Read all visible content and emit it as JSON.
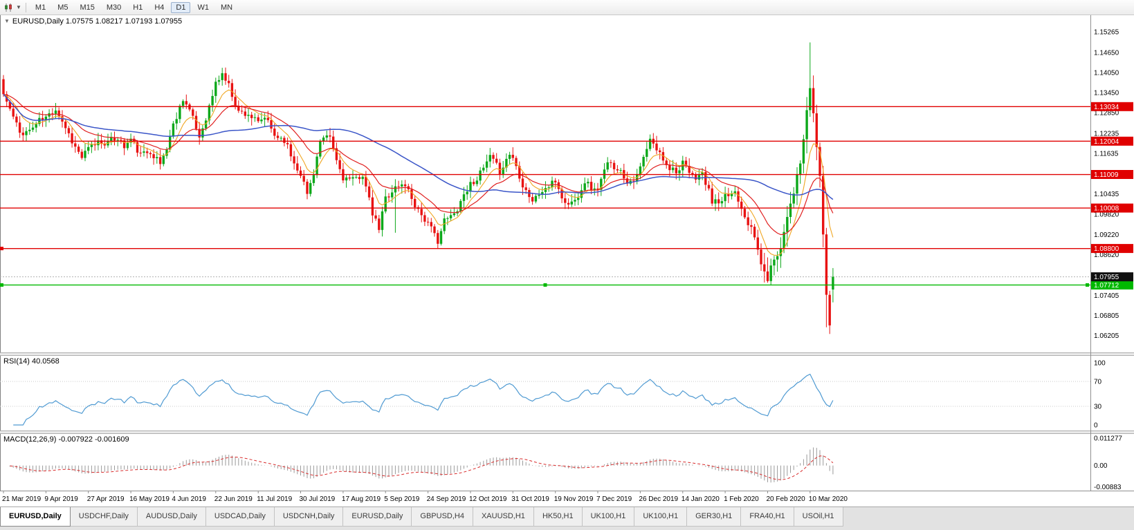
{
  "toolbar": {
    "timeframes": [
      "M1",
      "M5",
      "M15",
      "M30",
      "H1",
      "H4",
      "D1",
      "W1",
      "MN"
    ],
    "active_timeframe": "D1",
    "dropdown_icon": "▼"
  },
  "chart": {
    "collapse_icon": "▼",
    "info": "EURUSD,Daily 1.07575 1.08217 1.07193 1.07955"
  },
  "rsi": {
    "title": "RSI(14) 40.0568",
    "levels": [
      70,
      30
    ],
    "ticks": [
      {
        "label": "100",
        "value": 100
      },
      {
        "label": "70",
        "value": 70
      },
      {
        "label": "30",
        "value": 30
      },
      {
        "label": "0",
        "value": 0
      }
    ]
  },
  "macd": {
    "title": "MACD(12,26,9) -0.007922 -0.001609",
    "ticks": [
      {
        "label": "0.011277",
        "value": 0.011277
      },
      {
        "label": "0.00",
        "value": 0
      },
      {
        "label": "-0.00883",
        "value": -0.00883
      }
    ]
  },
  "price_axis": {
    "ticks": [
      {
        "label": "1.15265",
        "value": 1.15265
      },
      {
        "label": "1.14650",
        "value": 1.1465
      },
      {
        "label": "1.14050",
        "value": 1.1405
      },
      {
        "label": "1.13450",
        "value": 1.1345
      },
      {
        "label": "1.12850",
        "value": 1.1285
      },
      {
        "label": "1.12235",
        "value": 1.12235
      },
      {
        "label": "1.11635",
        "value": 1.11635
      },
      {
        "label": "1.10435",
        "value": 1.10435
      },
      {
        "label": "1.09820",
        "value": 1.0982
      },
      {
        "label": "1.09220",
        "value": 1.0922
      },
      {
        "label": "1.08620",
        "value": 1.0862
      },
      {
        "label": "1.07405",
        "value": 1.07405
      },
      {
        "label": "1.06805",
        "value": 1.06805
      },
      {
        "label": "1.06205",
        "value": 1.06205
      }
    ]
  },
  "price_levels": [
    {
      "label": "1.13034",
      "value": 1.13034,
      "color": "#e00000",
      "kind": "resistance",
      "handles": "none"
    },
    {
      "label": "1.12004",
      "value": 1.12004,
      "color": "#e00000",
      "kind": "resistance",
      "handles": "none"
    },
    {
      "label": "1.11009",
      "value": 1.11009,
      "color": "#e00000",
      "kind": "resistance",
      "handles": "none"
    },
    {
      "label": "1.10008",
      "value": 1.10008,
      "color": "#e00000",
      "kind": "resistance",
      "handles": "none"
    },
    {
      "label": "1.08800",
      "value": 1.088,
      "color": "#e00000",
      "kind": "resistance",
      "handles": "left"
    },
    {
      "label": "1.07712",
      "value": 1.07712,
      "color": "#00b800",
      "kind": "support",
      "handles": "all"
    }
  ],
  "current_price": {
    "label": "1.07955",
    "value": 1.07955
  },
  "date_axis": {
    "labels": [
      {
        "label": "21 Mar 2019",
        "index": 0
      },
      {
        "label": "9 Apr 2019",
        "index": 13
      },
      {
        "label": "27 Apr 2019",
        "index": 26
      },
      {
        "label": "16 May 2019",
        "index": 39
      },
      {
        "label": "4 Jun 2019",
        "index": 52
      },
      {
        "label": "22 Jun 2019",
        "index": 65
      },
      {
        "label": "11 Jul 2019",
        "index": 78
      },
      {
        "label": "30 Jul 2019",
        "index": 91
      },
      {
        "label": "17 Aug 2019",
        "index": 104
      },
      {
        "label": "5 Sep 2019",
        "index": 117
      },
      {
        "label": "24 Sep 2019",
        "index": 130
      },
      {
        "label": "12 Oct 2019",
        "index": 143
      },
      {
        "label": "31 Oct 2019",
        "index": 156
      },
      {
        "label": "19 Nov 2019",
        "index": 169
      },
      {
        "label": "7 Dec 2019",
        "index": 182
      },
      {
        "label": "26 Dec 2019",
        "index": 195
      },
      {
        "label": "14 Jan 2020",
        "index": 208
      },
      {
        "label": "1 Feb 2020",
        "index": 221
      },
      {
        "label": "20 Feb 2020",
        "index": 234
      },
      {
        "label": "10 Mar 2020",
        "index": 247
      }
    ]
  },
  "tabs": [
    {
      "label": "EURUSD,Daily",
      "active": true
    },
    {
      "label": "USDCHF,Daily",
      "active": false
    },
    {
      "label": "AUDUSD,Daily",
      "active": false
    },
    {
      "label": "USDCAD,Daily",
      "active": false
    },
    {
      "label": "USDCNH,Daily",
      "active": false
    },
    {
      "label": "EURUSD,Daily",
      "active": false
    },
    {
      "label": "GBPUSD,H4",
      "active": false
    },
    {
      "label": "XAUUSD,H1",
      "active": false
    },
    {
      "label": "HK50,H1",
      "active": false
    },
    {
      "label": "UK100,H1",
      "active": false
    },
    {
      "label": "UK100,H1",
      "active": false
    },
    {
      "label": "GER30,H1",
      "active": false
    },
    {
      "label": "FRA40,H1",
      "active": false
    },
    {
      "label": "USOil,H1",
      "active": false
    }
  ],
  "colors": {
    "bull": "#0ca81a",
    "bear": "#e81212",
    "ma_fast": "#f0a622",
    "ma_mid": "#e02020",
    "ma_slow": "#3a55c8",
    "rsi_line": "#4f9ad2",
    "macd_hist": "#9a9a9a",
    "macd_signal": "#d82a2a",
    "current_line": "#b0b0b0",
    "badge_current": "#111111"
  },
  "chart_data": {
    "type": "candlestick",
    "symbol": "EURUSD",
    "timeframe": "Daily",
    "current_ohlc": {
      "open": 1.07575,
      "high": 1.08217,
      "low": 1.07193,
      "close": 1.07955
    },
    "candle_count": 255,
    "y_range": [
      1.0572,
      1.1568
    ],
    "noise_seed": 11,
    "price_path_anchors": [
      [
        0,
        1.134
      ],
      [
        2,
        1.1295
      ],
      [
        5,
        1.1225
      ],
      [
        8,
        1.1232
      ],
      [
        11,
        1.1262
      ],
      [
        13,
        1.127
      ],
      [
        16,
        1.1299
      ],
      [
        19,
        1.1242
      ],
      [
        22,
        1.1182
      ],
      [
        24,
        1.1152
      ],
      [
        26,
        1.1176
      ],
      [
        29,
        1.12
      ],
      [
        32,
        1.1196
      ],
      [
        35,
        1.1212
      ],
      [
        37,
        1.1183
      ],
      [
        39,
        1.1206
      ],
      [
        42,
        1.1158
      ],
      [
        45,
        1.1172
      ],
      [
        48,
        1.1132
      ],
      [
        50,
        1.118
      ],
      [
        52,
        1.1248
      ],
      [
        55,
        1.133
      ],
      [
        57,
        1.1292
      ],
      [
        60,
        1.1212
      ],
      [
        63,
        1.1302
      ],
      [
        65,
        1.1372
      ],
      [
        67,
        1.1402
      ],
      [
        69,
        1.1366
      ],
      [
        72,
        1.1288
      ],
      [
        75,
        1.1282
      ],
      [
        78,
        1.1252
      ],
      [
        80,
        1.1272
      ],
      [
        83,
        1.1218
      ],
      [
        86,
        1.1206
      ],
      [
        89,
        1.1136
      ],
      [
        91,
        1.1106
      ],
      [
        93,
        1.1042
      ],
      [
        95,
        1.1108
      ],
      [
        97,
        1.1198
      ],
      [
        100,
        1.1212
      ],
      [
        102,
        1.1142
      ],
      [
        104,
        1.1092
      ],
      [
        107,
        1.1082
      ],
      [
        110,
        1.1102
      ],
      [
        113,
        1.0982
      ],
      [
        115,
        1.0938
      ],
      [
        117,
        1.1032
      ],
      [
        120,
        1.1062
      ],
      [
        123,
        1.1072
      ],
      [
        126,
        1.1012
      ],
      [
        128,
        1.0982
      ],
      [
        130,
        1.0952
      ],
      [
        133,
        1.0905
      ],
      [
        135,
        1.0962
      ],
      [
        138,
        1.0982
      ],
      [
        141,
        1.1042
      ],
      [
        143,
        1.1072
      ],
      [
        146,
        1.1102
      ],
      [
        149,
        1.1152
      ],
      [
        152,
        1.1112
      ],
      [
        155,
        1.1162
      ],
      [
        156,
        1.1152
      ],
      [
        159,
        1.1072
      ],
      [
        162,
        1.1022
      ],
      [
        165,
        1.1052
      ],
      [
        168,
        1.1072
      ],
      [
        169,
        1.1082
      ],
      [
        172,
        1.1012
      ],
      [
        175,
        1.1022
      ],
      [
        178,
        1.1082
      ],
      [
        181,
        1.1052
      ],
      [
        182,
        1.1062
      ],
      [
        185,
        1.1132
      ],
      [
        188,
        1.1122
      ],
      [
        191,
        1.1082
      ],
      [
        194,
        1.1092
      ],
      [
        195,
        1.1122
      ],
      [
        198,
        1.1202
      ],
      [
        201,
        1.1162
      ],
      [
        204,
        1.1122
      ],
      [
        207,
        1.1112
      ],
      [
        208,
        1.1132
      ],
      [
        211,
        1.1092
      ],
      [
        214,
        1.1102
      ],
      [
        217,
        1.1022
      ],
      [
        220,
        1.1012
      ],
      [
        221,
        1.1032
      ],
      [
        224,
        1.1052
      ],
      [
        227,
        1.0982
      ],
      [
        230,
        1.0912
      ],
      [
        233,
        1.0802
      ],
      [
        234,
        1.0792
      ],
      [
        236,
        1.0852
      ],
      [
        238,
        1.0882
      ],
      [
        240,
        1.0982
      ],
      [
        242,
        1.1052
      ],
      [
        244,
        1.1132
      ],
      [
        246,
        1.1282
      ],
      [
        247,
        1.1362
      ],
      [
        248,
        1.1282
      ],
      [
        249,
        1.1182
      ],
      [
        250,
        1.1102
      ],
      [
        251,
        1.0922
      ],
      [
        252,
        1.0732
      ],
      [
        253,
        1.0655
      ],
      [
        254,
        1.07955
      ]
    ],
    "wick_overrides": [
      {
        "index": 93,
        "low": 1.1027
      },
      {
        "index": 115,
        "low": 1.0926
      },
      {
        "index": 120,
        "high": 1.1087,
        "low": 1.0927
      },
      {
        "index": 133,
        "low": 1.0879
      },
      {
        "index": 234,
        "low": 1.0778
      },
      {
        "index": 247,
        "high": 1.1495
      },
      {
        "index": 252,
        "low": 1.0645
      },
      {
        "index": 253,
        "low": 1.0625
      }
    ],
    "overlays": [
      {
        "name": "ma-fast",
        "method": "ema",
        "period": 8,
        "color_key": "ma_fast",
        "width": 1.1
      },
      {
        "name": "ma-mid",
        "method": "ema",
        "period": 20,
        "color_key": "ma_mid",
        "width": 1.2
      },
      {
        "name": "ma-slow",
        "method": "sma",
        "period": 55,
        "color_key": "ma_slow",
        "width": 1.5
      }
    ],
    "indicators": [
      {
        "name": "RSI",
        "period": 14,
        "value": 40.0568
      },
      {
        "name": "MACD",
        "fast": 12,
        "slow": 26,
        "signal_period": 9,
        "values": [
          -0.007922,
          -0.001609
        ]
      }
    ]
  }
}
